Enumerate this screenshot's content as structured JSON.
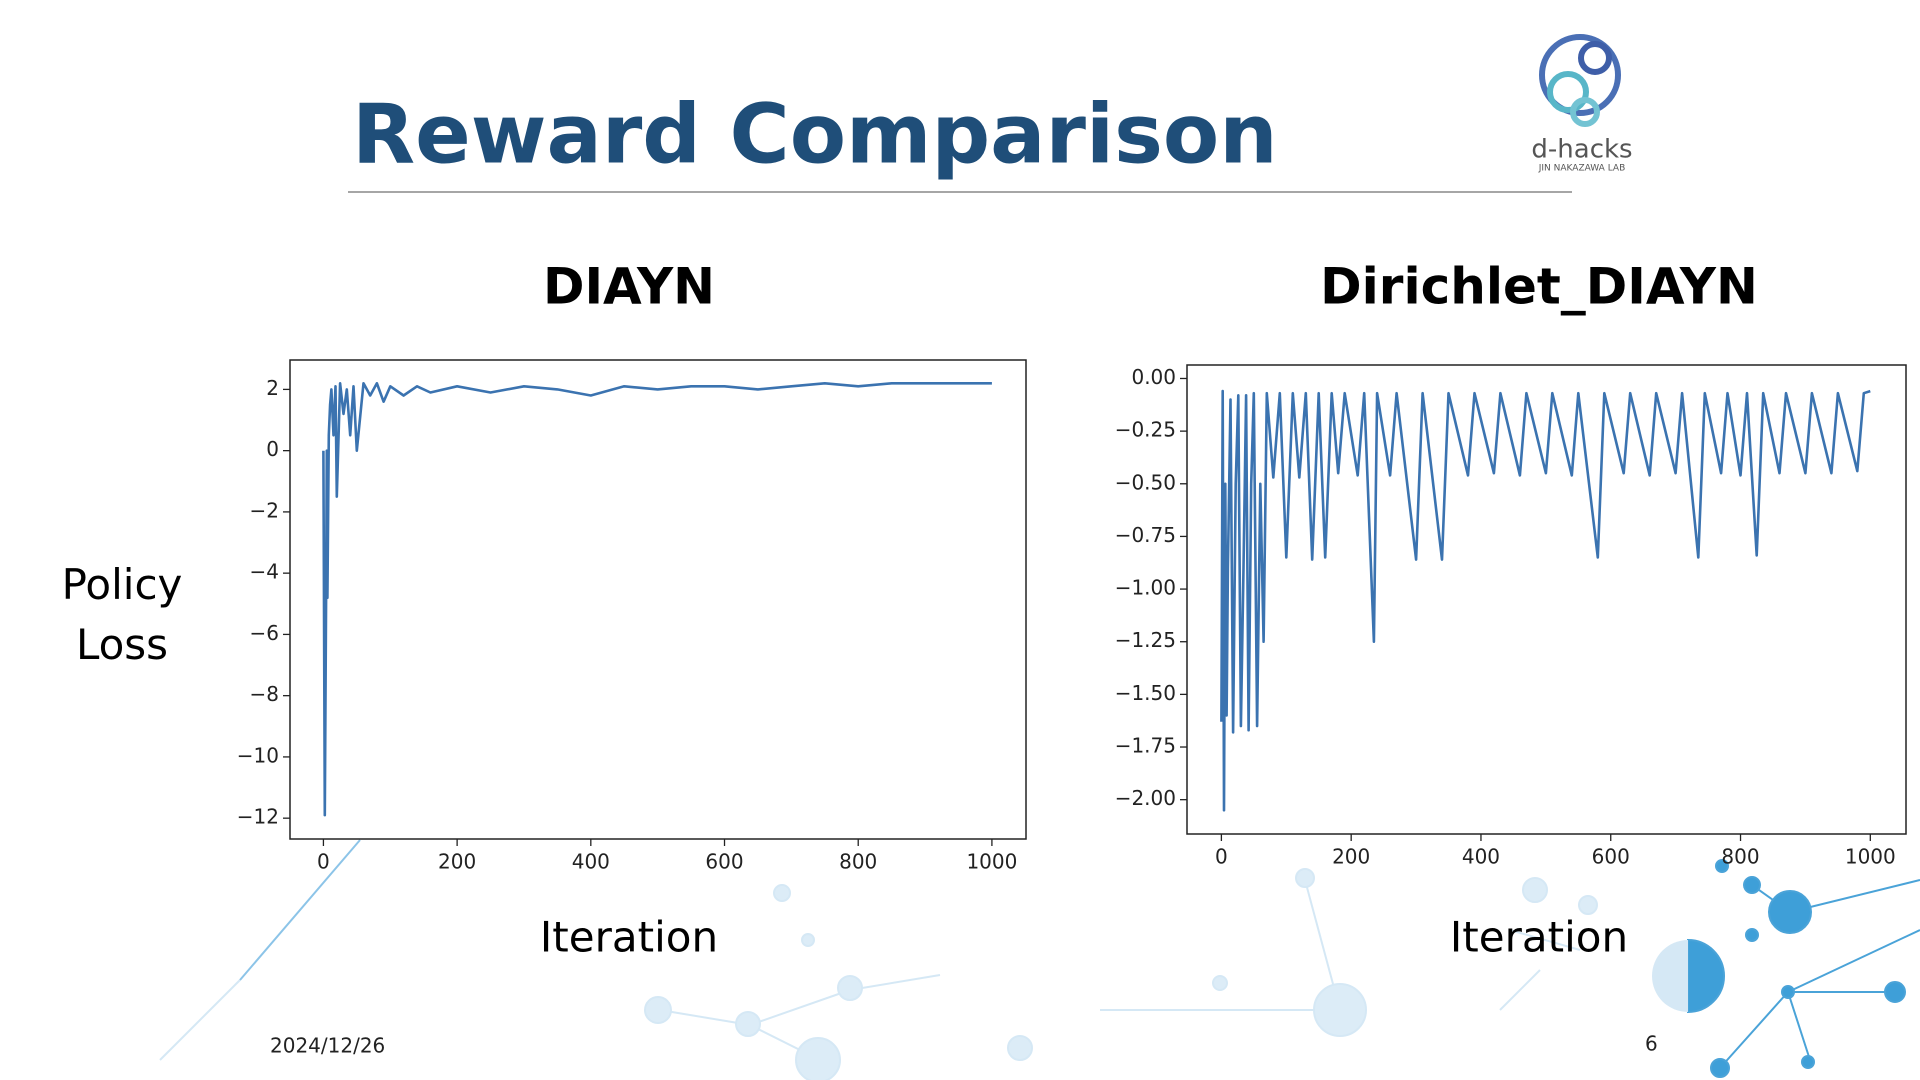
{
  "header": {
    "title": "Reward Comparison"
  },
  "logo": {
    "name": "d-hacks",
    "lab": "JIN NAKAZAWA LAB"
  },
  "footer": {
    "date": "2024/12/26",
    "page": "6"
  },
  "chart_data": [
    {
      "type": "line",
      "title": "DIAYN",
      "xlabel": "Iteration",
      "ylabel": "Policy Loss",
      "color": "#3b73b0",
      "xlim": [
        -50,
        1051
      ],
      "ylim": [
        -12.68,
        2.96
      ],
      "xticks": [
        0,
        200,
        400,
        600,
        800,
        1000
      ],
      "yticks": [
        {
          "value": -12,
          "label": "−12"
        },
        {
          "value": -10,
          "label": "−10"
        },
        {
          "value": -8,
          "label": "−8"
        },
        {
          "value": -6,
          "label": "−6"
        },
        {
          "value": -4,
          "label": "−4"
        },
        {
          "value": -2,
          "label": "−2"
        },
        0,
        2
      ],
      "x": [
        0,
        2,
        4,
        5,
        6,
        8,
        10,
        12,
        15,
        18,
        20,
        25,
        30,
        35,
        40,
        45,
        50,
        60,
        70,
        80,
        90,
        100,
        120,
        140,
        160,
        200,
        250,
        300,
        350,
        400,
        450,
        500,
        550,
        600,
        650,
        700,
        750,
        800,
        850,
        900,
        950,
        1000
      ],
      "values": [
        0,
        -11.9,
        -4.8,
        0,
        -4.8,
        0.5,
        1.5,
        2.0,
        0.5,
        2.1,
        -1.5,
        2.2,
        1.2,
        2.0,
        0.5,
        2.1,
        0,
        2.2,
        1.8,
        2.2,
        1.6,
        2.1,
        1.8,
        2.1,
        1.9,
        2.1,
        1.9,
        2.1,
        2.0,
        1.8,
        2.1,
        2.0,
        2.1,
        2.1,
        2.0,
        2.1,
        2.2,
        2.1,
        2.2,
        2.2,
        2.2,
        2.2
      ]
    },
    {
      "type": "line",
      "title": "Dirichlet_DIAYN",
      "xlabel": "Iteration",
      "color": "#3b73b0",
      "xlim": [
        -53,
        1055
      ],
      "ylim": [
        -2.163,
        0.064
      ],
      "xticks": [
        0,
        200,
        400,
        600,
        800,
        1000
      ],
      "yticks": [
        {
          "value": 0,
          "label": "0.00"
        },
        {
          "value": -0.25,
          "label": "−0.25"
        },
        {
          "value": -0.5,
          "label": "−0.50"
        },
        {
          "value": -0.75,
          "label": "−0.75"
        },
        {
          "value": -1,
          "label": "−1.00"
        },
        {
          "value": -1.25,
          "label": "−1.25"
        },
        {
          "value": -1.5,
          "label": "−1.50"
        },
        {
          "value": -1.75,
          "label": "−1.75"
        },
        {
          "value": -2,
          "label": "−2.00"
        }
      ],
      "x": [
        0,
        2,
        4,
        6,
        8,
        10,
        14,
        18,
        22,
        26,
        30,
        34,
        38,
        42,
        46,
        50,
        55,
        60,
        65,
        70,
        80,
        90,
        100,
        110,
        120,
        130,
        140,
        150,
        160,
        170,
        180,
        190,
        210,
        220,
        235,
        240,
        260,
        270,
        300,
        310,
        340,
        350,
        380,
        390,
        420,
        430,
        460,
        470,
        500,
        510,
        540,
        550,
        580,
        590,
        620,
        630,
        660,
        670,
        700,
        710,
        735,
        745,
        770,
        780,
        800,
        810,
        825,
        835,
        860,
        870,
        900,
        910,
        940,
        950,
        980,
        990,
        1000
      ],
      "values": [
        -1.63,
        -0.06,
        -2.05,
        -0.5,
        -1.6,
        -0.9,
        -0.1,
        -1.68,
        -0.5,
        -0.08,
        -1.65,
        -0.9,
        -0.08,
        -1.67,
        -0.5,
        -0.07,
        -1.65,
        -0.5,
        -1.25,
        -0.07,
        -0.47,
        -0.07,
        -0.85,
        -0.07,
        -0.47,
        -0.07,
        -0.86,
        -0.07,
        -0.85,
        -0.07,
        -0.45,
        -0.07,
        -0.46,
        -0.07,
        -1.25,
        -0.07,
        -0.46,
        -0.07,
        -0.86,
        -0.07,
        -0.86,
        -0.07,
        -0.46,
        -0.07,
        -0.45,
        -0.07,
        -0.46,
        -0.07,
        -0.45,
        -0.07,
        -0.46,
        -0.07,
        -0.85,
        -0.07,
        -0.45,
        -0.07,
        -0.46,
        -0.07,
        -0.45,
        -0.07,
        -0.85,
        -0.07,
        -0.45,
        -0.07,
        -0.46,
        -0.07,
        -0.84,
        -0.07,
        -0.45,
        -0.07,
        -0.45,
        -0.07,
        -0.45,
        -0.07,
        -0.44,
        -0.07,
        -0.06
      ]
    }
  ]
}
